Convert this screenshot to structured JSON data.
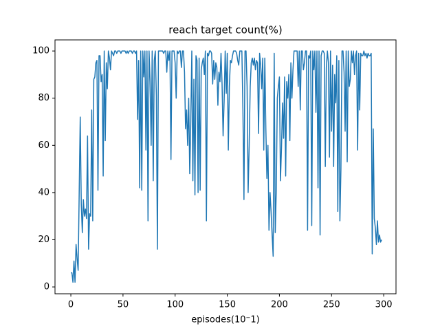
{
  "chart_data": {
    "type": "line",
    "title": "reach target count(%)",
    "x_label": "episodes(10⁻1)",
    "x": [
      0,
      1,
      2,
      3,
      4,
      5,
      6,
      7,
      8,
      9,
      10,
      11,
      12,
      13,
      14,
      15,
      16,
      17,
      18,
      19,
      20,
      21,
      22,
      23,
      24,
      25,
      26,
      27,
      28,
      29,
      30,
      31,
      32,
      33,
      34,
      35,
      36,
      37,
      38,
      39,
      40,
      41,
      42,
      43,
      44,
      45,
      46,
      47,
      48,
      49,
      50,
      51,
      52,
      53,
      54,
      55,
      56,
      57,
      58,
      59,
      60,
      61,
      62,
      63,
      64,
      65,
      66,
      67,
      68,
      69,
      70,
      71,
      72,
      73,
      74,
      75,
      76,
      77,
      78,
      79,
      80,
      81,
      82,
      83,
      84,
      85,
      86,
      87,
      88,
      89,
      90,
      91,
      92,
      93,
      94,
      95,
      96,
      97,
      98,
      99,
      100,
      101,
      102,
      103,
      104,
      105,
      106,
      107,
      108,
      109,
      110,
      111,
      112,
      113,
      114,
      115,
      116,
      117,
      118,
      119,
      120,
      121,
      122,
      123,
      124,
      125,
      126,
      127,
      128,
      129,
      130,
      131,
      132,
      133,
      134,
      135,
      136,
      137,
      138,
      139,
      140,
      141,
      142,
      143,
      144,
      145,
      146,
      147,
      148,
      149,
      150,
      151,
      152,
      153,
      154,
      155,
      156,
      157,
      158,
      159,
      160,
      161,
      162,
      163,
      164,
      165,
      166,
      167,
      168,
      169,
      170,
      171,
      172,
      173,
      174,
      175,
      176,
      177,
      178,
      179,
      180,
      181,
      182,
      183,
      184,
      185,
      186,
      187,
      188,
      189,
      190,
      191,
      192,
      193,
      194,
      195,
      196,
      197,
      198,
      199,
      200,
      201,
      202,
      203,
      204,
      205,
      206,
      207,
      208,
      209,
      210,
      211,
      212,
      213,
      214,
      215,
      216,
      217,
      218,
      219,
      220,
      221,
      222,
      223,
      224,
      225,
      226,
      227,
      228,
      229,
      230,
      231,
      232,
      233,
      234,
      235,
      236,
      237,
      238,
      239,
      240,
      241,
      242,
      243,
      244,
      245,
      246,
      247,
      248,
      249,
      250,
      251,
      252,
      253,
      254,
      255,
      256,
      257,
      258,
      259,
      260,
      261,
      262,
      263,
      264,
      265,
      266,
      267,
      268,
      269,
      270,
      271,
      272,
      273,
      274,
      275,
      276,
      277,
      278,
      279,
      280,
      281,
      282,
      283,
      284,
      285,
      286,
      287,
      288,
      289,
      290,
      291,
      292,
      293,
      294,
      295,
      296,
      297,
      298
    ],
    "series": [
      {
        "color": "#1f77b4",
        "values": [
          6,
          6,
          2,
          11,
          2,
          18,
          12,
          7,
          40,
          72,
          35,
          23,
          37,
          30,
          33,
          29,
          64,
          16,
          31,
          30,
          75,
          28,
          88,
          89,
          95,
          96,
          41,
          98,
          98,
          87,
          90,
          47,
          100,
          62,
          95,
          84,
          100,
          97,
          92,
          100,
          99,
          98,
          100,
          100,
          99,
          100,
          100,
          100,
          99,
          100,
          100,
          100,
          100,
          99,
          100,
          99,
          100,
          100,
          100,
          99,
          100,
          100,
          99,
          100,
          71,
          96,
          42,
          100,
          41,
          100,
          89,
          100,
          58,
          100,
          28,
          100,
          87,
          60,
          100,
          45,
          96,
          100,
          81,
          16,
          100,
          100,
          100,
          100,
          100,
          99,
          100,
          100,
          91,
          100,
          96,
          100,
          54,
          100,
          100,
          100,
          95,
          80,
          100,
          99,
          100,
          100,
          93,
          100,
          100,
          91,
          67,
          75,
          60,
          80,
          48,
          70,
          100,
          45,
          88,
          39,
          98,
          96,
          40,
          97,
          41,
          92,
          95,
          97,
          90,
          100,
          28,
          99,
          98,
          100,
          100,
          99,
          86,
          96,
          88,
          95,
          93,
          77,
          91,
          87,
          99,
          86,
          64,
          79,
          100,
          82,
          99,
          58,
          85,
          96,
          95,
          98,
          100,
          100,
          100,
          99,
          96,
          94,
          100,
          100,
          100,
          75,
          37,
          100,
          100,
          85,
          40,
          60,
          85,
          95,
          97,
          94,
          97,
          92,
          96,
          95,
          65,
          99,
          94,
          84,
          97,
          58,
          97,
          67,
          46,
          60,
          24,
          40,
          32,
          22,
          13,
          99,
          23,
          41,
          80,
          85,
          89,
          45,
          59,
          78,
          63,
          89,
          47,
          87,
          80,
          90,
          62,
          95,
          80,
          92,
          100,
          100,
          100,
          100,
          85,
          100,
          75,
          100,
          100,
          92,
          95,
          100,
          100,
          24,
          98,
          97,
          100,
          26,
          100,
          92,
          100,
          74,
          100,
          42,
          100,
          22,
          98,
          100,
          100,
          99,
          51,
          93,
          100,
          95,
          55,
          100,
          66,
          94,
          51,
          90,
          78,
          98,
          32,
          96,
          28,
          50,
          100,
          100,
          91,
          66,
          100,
          53,
          100,
          85,
          88,
          100,
          95,
          100,
          90,
          98,
          100,
          58,
          99,
          75,
          99,
          98,
          98,
          100,
          98,
          99,
          97,
          99,
          98,
          98,
          99,
          14,
          67,
          29,
          25,
          18,
          28,
          19,
          22,
          19,
          20
        ]
      }
    ],
    "xlim": [
      -15.2,
      311.8
    ],
    "ylim": [
      -2.9,
      104.7
    ],
    "xticks": [
      0,
      50,
      100,
      150,
      200,
      250,
      300
    ],
    "yticks": [
      0,
      20,
      40,
      60,
      80,
      100
    ],
    "grid": false
  }
}
